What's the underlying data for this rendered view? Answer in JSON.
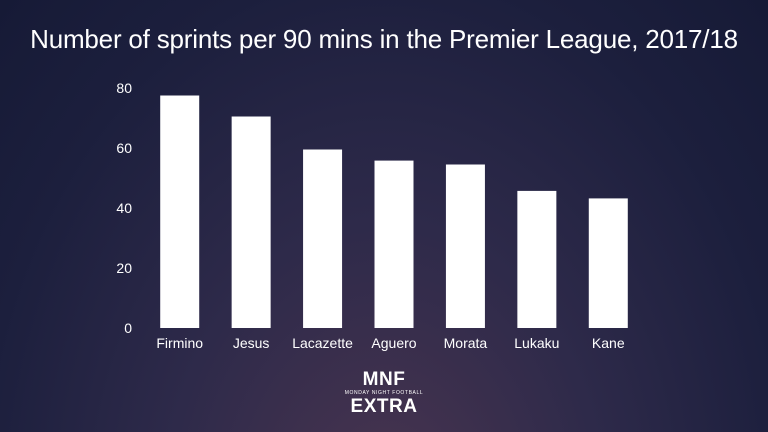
{
  "chart_data": {
    "type": "bar",
    "title": "Number of sprints per 90 mins in the Premier League, 2017/18",
    "categories": [
      "Firmino",
      "Jesus",
      "Lacazette",
      "Aguero",
      "Morata",
      "Lukaku",
      "Kane"
    ],
    "values": [
      77.5,
      70.5,
      59.5,
      55.8,
      54.5,
      45.7,
      43.2
    ],
    "ylim": [
      0,
      80
    ],
    "yticks": [
      0,
      20,
      40,
      60,
      80
    ],
    "grid": false,
    "bar_color": "#ffffff"
  },
  "branding": {
    "top": "MNF",
    "subtitle": "MONDAY NIGHT FOOTBALL",
    "bottom": "EXTRA"
  }
}
